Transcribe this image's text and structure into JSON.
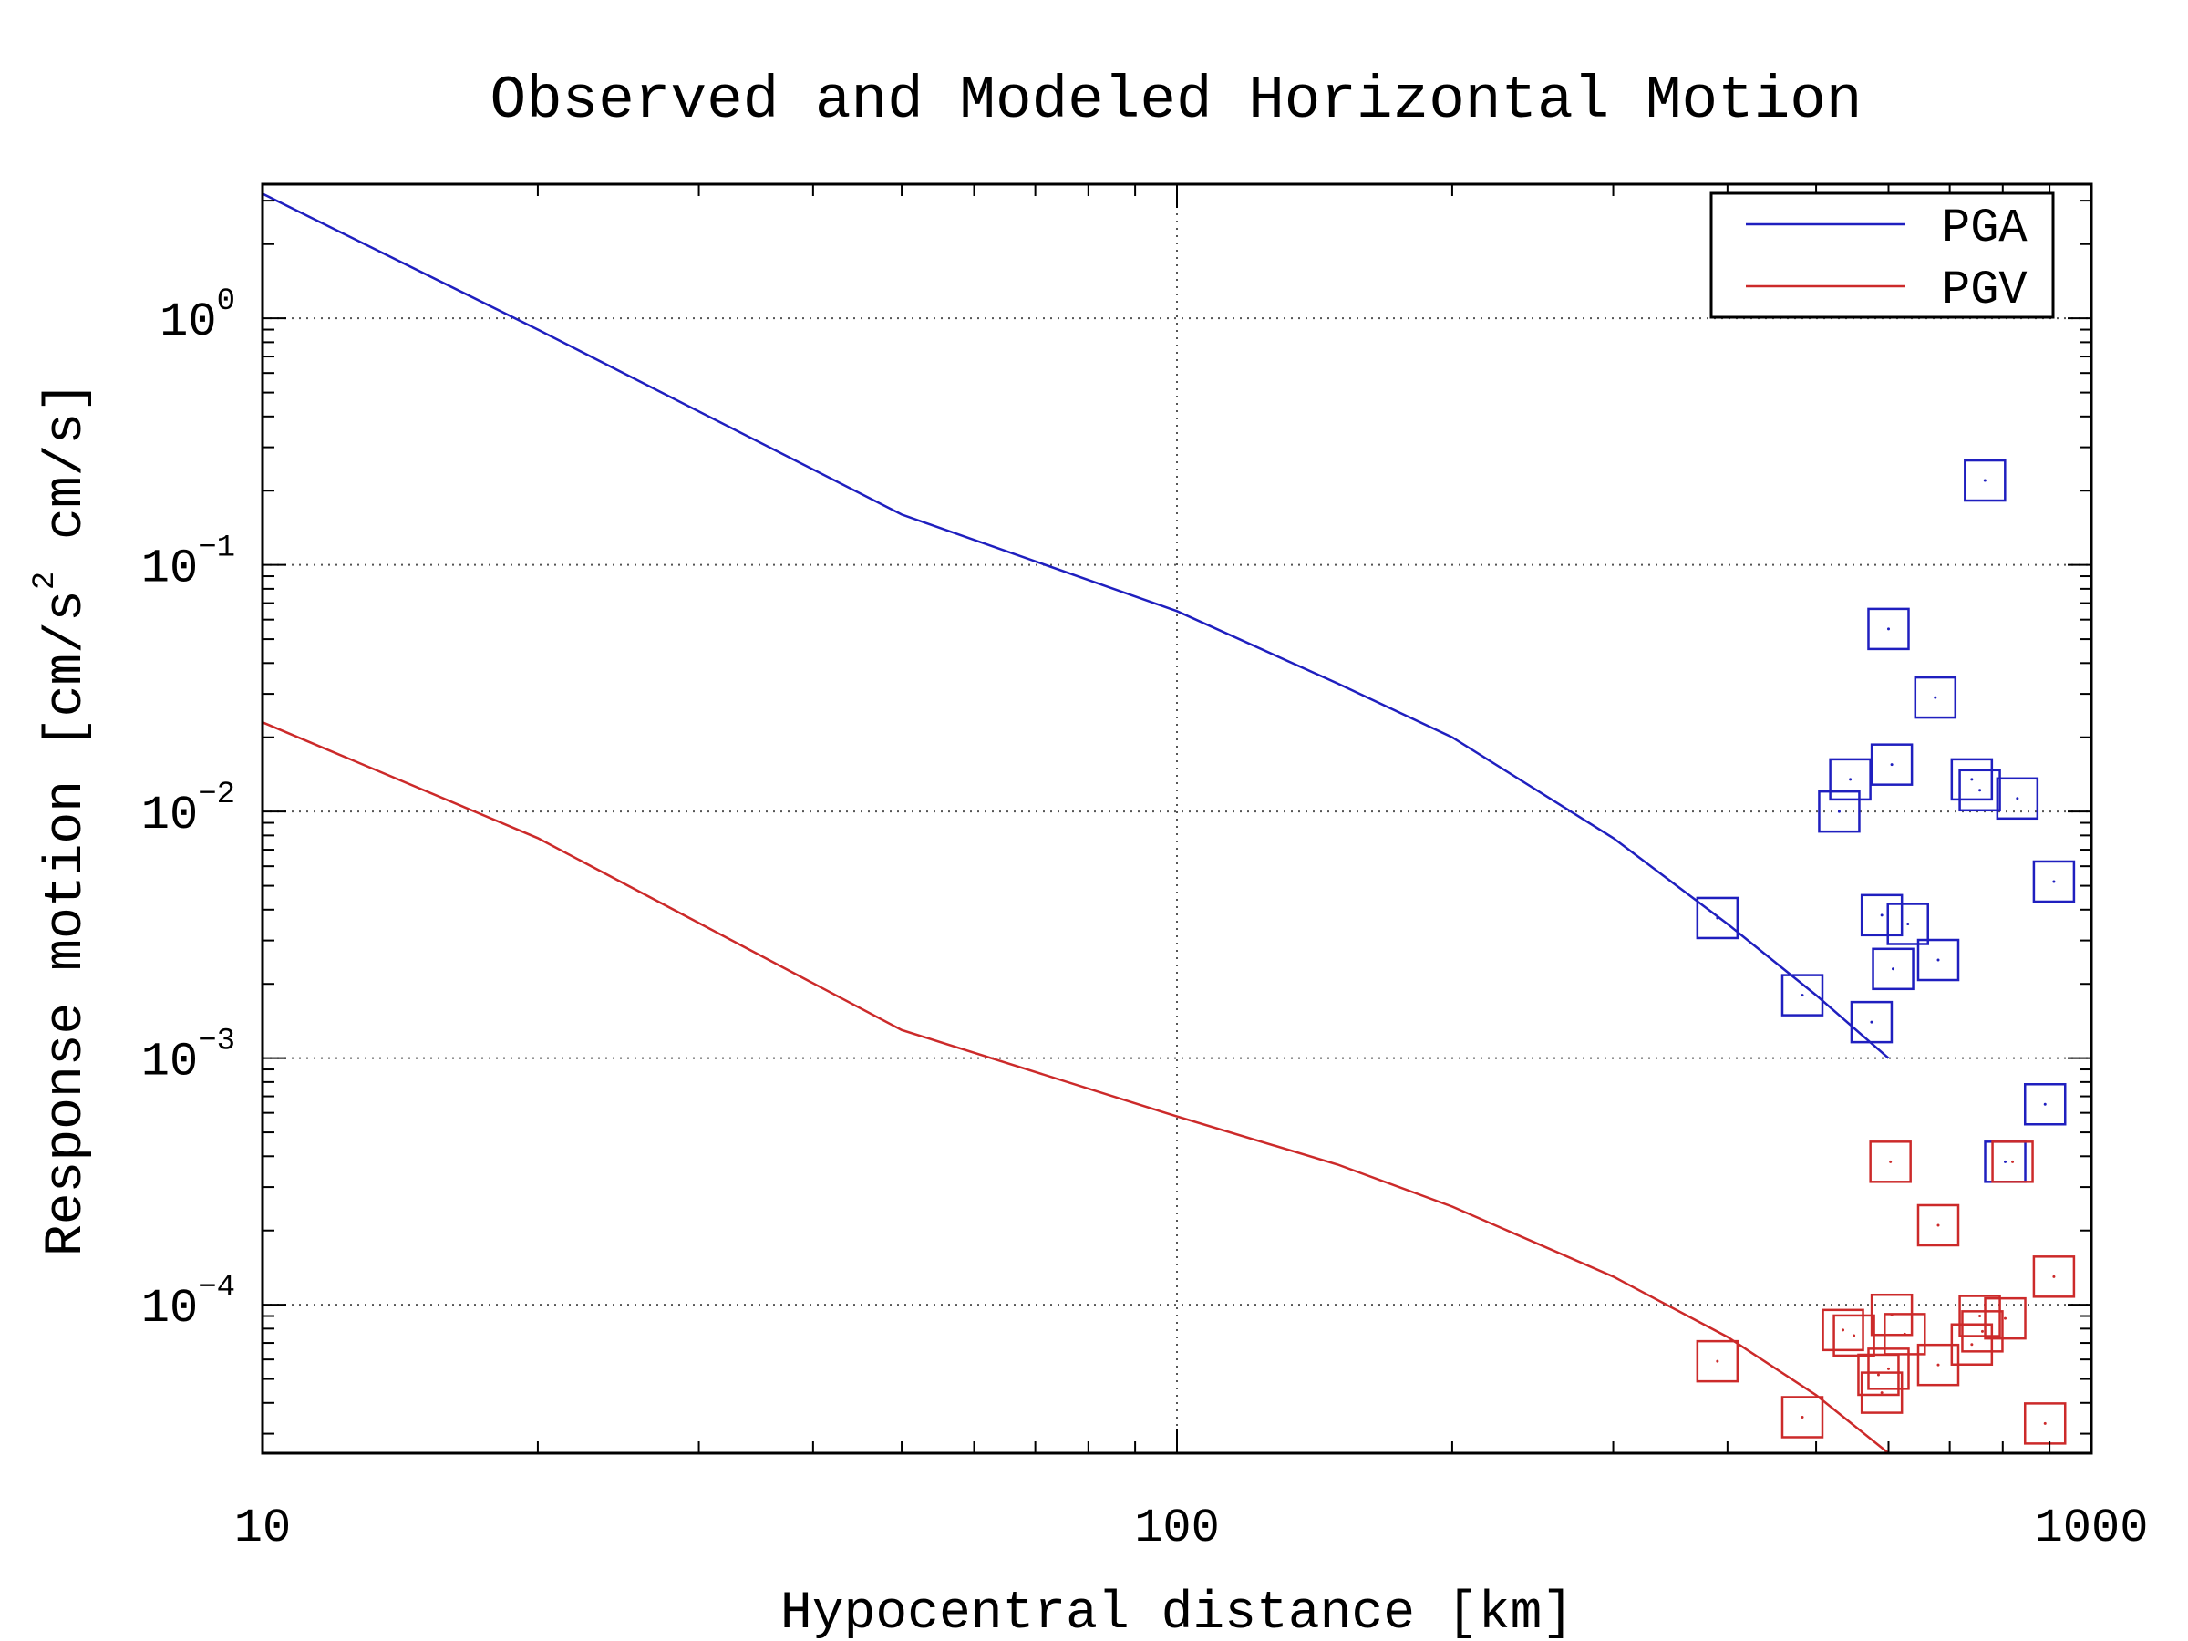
{
  "chart_data": {
    "type": "scatter",
    "title": "Observed and Modeled Horizontal Motion",
    "xlabel": "Hypocentral distance [km]",
    "ylabel": "Response motion [cm/s² cm/s]",
    "ylabel_parts": [
      "Response motion [cm/s",
      "2",
      " cm/s]"
    ],
    "xscale": "log",
    "yscale": "log",
    "xlim": [
      10,
      1000
    ],
    "ylim": [
      2.5e-05,
      3.5
    ],
    "grid": true,
    "legend_position": "top-right",
    "x_ticks": [
      {
        "value": 10,
        "label": "10"
      },
      {
        "value": 100,
        "label": "100"
      },
      {
        "value": 1000,
        "label": "1000"
      }
    ],
    "y_ticks": [
      {
        "value": 1,
        "base": "10",
        "exp": "0"
      },
      {
        "value": 0.1,
        "base": "10",
        "exp": "−1"
      },
      {
        "value": 0.01,
        "base": "10",
        "exp": "−2"
      },
      {
        "value": 0.001,
        "base": "10",
        "exp": "−3"
      },
      {
        "value": 0.0001,
        "base": "10",
        "exp": "−4"
      }
    ],
    "series": [
      {
        "name": "PGA",
        "color": "#1f1fbf",
        "model_x": [
          10,
          20,
          50,
          100,
          150,
          200,
          300,
          400,
          500,
          600
        ],
        "model_y": [
          3.2,
          0.9,
          0.16,
          0.065,
          0.033,
          0.02,
          0.0078,
          0.0035,
          0.0018,
          0.001
        ],
        "observed": [
          {
            "x": 390,
            "y": 0.0037
          },
          {
            "x": 483,
            "y": 0.0018
          },
          {
            "x": 530,
            "y": 0.01
          },
          {
            "x": 545,
            "y": 0.0135
          },
          {
            "x": 575,
            "y": 0.0014
          },
          {
            "x": 590,
            "y": 0.0038
          },
          {
            "x": 600,
            "y": 0.055
          },
          {
            "x": 605,
            "y": 0.0155
          },
          {
            "x": 607,
            "y": 0.0023
          },
          {
            "x": 630,
            "y": 0.0035
          },
          {
            "x": 675,
            "y": 0.029
          },
          {
            "x": 680,
            "y": 0.0025
          },
          {
            "x": 740,
            "y": 0.0135
          },
          {
            "x": 755,
            "y": 0.0122
          },
          {
            "x": 765,
            "y": 0.22
          },
          {
            "x": 805,
            "y": 0.00038
          },
          {
            "x": 830,
            "y": 0.0113
          },
          {
            "x": 890,
            "y": 0.00065
          },
          {
            "x": 910,
            "y": 0.0052
          }
        ]
      },
      {
        "name": "PGV",
        "color": "#cc2a2a",
        "model_x": [
          10,
          20,
          50,
          100,
          150,
          200,
          300,
          400,
          500,
          600
        ],
        "model_y": [
          0.023,
          0.0078,
          0.0013,
          0.00058,
          0.00037,
          0.00025,
          0.00013,
          7.4e-05,
          4.3e-05,
          2.5e-05
        ],
        "observed": [
          {
            "x": 390,
            "y": 5.9e-05
          },
          {
            "x": 483,
            "y": 3.5e-05
          },
          {
            "x": 535,
            "y": 7.9e-05
          },
          {
            "x": 550,
            "y": 7.5e-05
          },
          {
            "x": 585,
            "y": 5.2e-05
          },
          {
            "x": 590,
            "y": 4.4e-05
          },
          {
            "x": 600,
            "y": 5.5e-05
          },
          {
            "x": 603,
            "y": 0.00038
          },
          {
            "x": 605,
            "y": 9.1e-05
          },
          {
            "x": 625,
            "y": 7.6e-05
          },
          {
            "x": 680,
            "y": 5.7e-05
          },
          {
            "x": 680,
            "y": 0.00021
          },
          {
            "x": 740,
            "y": 6.9e-05
          },
          {
            "x": 755,
            "y": 9e-05
          },
          {
            "x": 760,
            "y": 7.8e-05
          },
          {
            "x": 805,
            "y": 8.8e-05
          },
          {
            "x": 820,
            "y": 0.00038
          },
          {
            "x": 890,
            "y": 3.3e-05
          },
          {
            "x": 910,
            "y": 0.00013
          }
        ]
      }
    ]
  }
}
